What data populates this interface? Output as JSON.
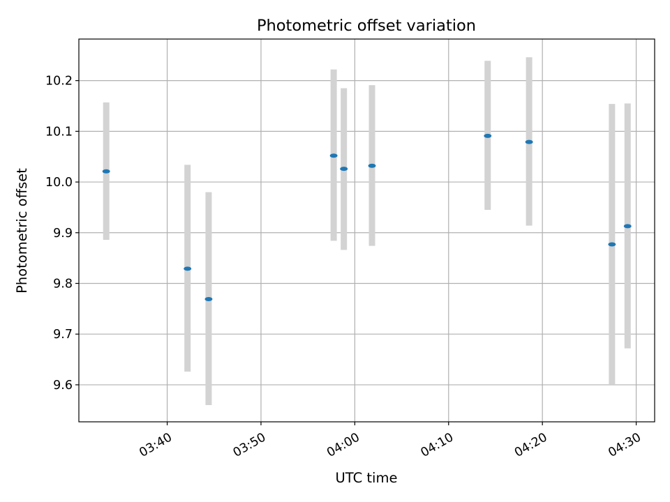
{
  "chart_data": {
    "type": "scatter",
    "title": "Photometric offset variation",
    "xlabel": "UTC time",
    "ylabel": "Photometric offset",
    "x_axis_type": "time",
    "xlim": [
      "03:30:35",
      "04:31:58"
    ],
    "ylim": [
      9.527,
      10.282
    ],
    "x_ticks": [
      "03:40",
      "03:50",
      "04:00",
      "04:10",
      "04:20",
      "04:30"
    ],
    "y_ticks": [
      "9.6",
      "9.7",
      "9.8",
      "9.9",
      "10.0",
      "10.1",
      "10.2"
    ],
    "grid": true,
    "series": [
      {
        "marker_color": "#1f77b4",
        "error_bar_color": "#d3d3d3",
        "points": [
          {
            "time": "03:33:30",
            "value": 10.021,
            "low": 9.886,
            "high": 10.157
          },
          {
            "time": "03:42:10",
            "value": 9.829,
            "low": 9.626,
            "high": 10.034
          },
          {
            "time": "03:44:25",
            "value": 9.769,
            "low": 9.56,
            "high": 9.98
          },
          {
            "time": "03:57:45",
            "value": 10.052,
            "low": 9.884,
            "high": 10.222
          },
          {
            "time": "03:58:50",
            "value": 10.026,
            "low": 9.866,
            "high": 10.185
          },
          {
            "time": "04:01:50",
            "value": 10.032,
            "low": 9.874,
            "high": 10.191
          },
          {
            "time": "04:14:10",
            "value": 10.091,
            "low": 9.945,
            "high": 10.239
          },
          {
            "time": "04:18:35",
            "value": 10.079,
            "low": 9.914,
            "high": 10.246
          },
          {
            "time": "04:27:25",
            "value": 9.877,
            "low": 9.6,
            "high": 10.154
          },
          {
            "time": "04:29:05",
            "value": 9.913,
            "low": 9.672,
            "high": 10.155
          }
        ]
      }
    ]
  }
}
